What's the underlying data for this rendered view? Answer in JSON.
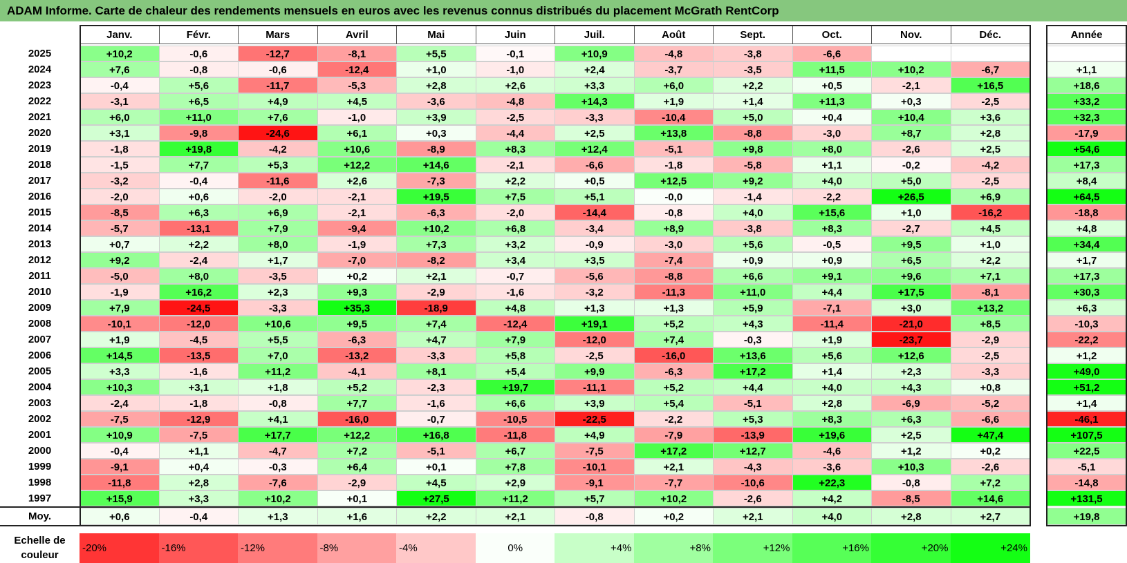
{
  "title": "ADAM Informe. Carte de chaleur des rendements mensuels en euros avec les revenus connus distribués du placement McGrath RentCorp",
  "chart_data": {
    "type": "heatmap",
    "months": [
      "Janv.",
      "Févr.",
      "Mars",
      "Avril",
      "Mai",
      "Juin",
      "Juil.",
      "Août",
      "Sept.",
      "Oct.",
      "Nov.",
      "Déc."
    ],
    "year_header": "Année",
    "rows": [
      {
        "year": "2025",
        "values": [
          "+10,2",
          "-0,6",
          "-12,7",
          "-8,1",
          "+5,5",
          "-0,1",
          "+10,9",
          "-4,8",
          "-3,8",
          "-6,6",
          "",
          ""
        ],
        "annual": ""
      },
      {
        "year": "2024",
        "values": [
          "+7,6",
          "-0,8",
          "-0,6",
          "-12,4",
          "+1,0",
          "-1,0",
          "+2,4",
          "-3,7",
          "-3,5",
          "+11,5",
          "+10,2",
          "-6,7"
        ],
        "annual": "+1,1"
      },
      {
        "year": "2023",
        "values": [
          "-0,4",
          "+5,6",
          "-11,7",
          "-5,3",
          "+2,8",
          "+2,6",
          "+3,3",
          "+6,0",
          "+2,2",
          "+0,5",
          "-2,1",
          "+16,5"
        ],
        "annual": "+18,6"
      },
      {
        "year": "2022",
        "values": [
          "-3,1",
          "+6,5",
          "+4,9",
          "+4,5",
          "-3,6",
          "-4,8",
          "+14,3",
          "+1,9",
          "+1,4",
          "+11,3",
          "+0,3",
          "-2,5"
        ],
        "annual": "+33,2"
      },
      {
        "year": "2021",
        "values": [
          "+6,0",
          "+11,0",
          "+7,6",
          "-1,0",
          "+3,9",
          "-2,5",
          "-3,3",
          "-10,4",
          "+5,0",
          "+0,4",
          "+10,4",
          "+3,6"
        ],
        "annual": "+32,3"
      },
      {
        "year": "2020",
        "values": [
          "+3,1",
          "-9,8",
          "-24,6",
          "+6,1",
          "+0,3",
          "-4,4",
          "+2,5",
          "+13,8",
          "-8,8",
          "-3,0",
          "+8,7",
          "+2,8"
        ],
        "annual": "-17,9"
      },
      {
        "year": "2019",
        "values": [
          "-1,8",
          "+19,8",
          "-4,2",
          "+10,6",
          "-8,9",
          "+8,3",
          "+12,4",
          "-5,1",
          "+9,8",
          "+8,0",
          "-2,6",
          "+2,5"
        ],
        "annual": "+54,6"
      },
      {
        "year": "2018",
        "values": [
          "-1,5",
          "+7,7",
          "+5,3",
          "+12,2",
          "+14,6",
          "-2,1",
          "-6,6",
          "-1,8",
          "-5,8",
          "+1,1",
          "-0,2",
          "-4,2"
        ],
        "annual": "+17,3"
      },
      {
        "year": "2017",
        "values": [
          "-3,2",
          "-0,4",
          "-11,6",
          "+2,6",
          "-7,3",
          "+2,2",
          "+0,5",
          "+12,5",
          "+9,2",
          "+4,0",
          "+5,0",
          "-2,5"
        ],
        "annual": "+8,4"
      },
      {
        "year": "2016",
        "values": [
          "-2,0",
          "+0,6",
          "-2,0",
          "-2,1",
          "+19,5",
          "+7,5",
          "+5,1",
          "-0,0",
          "-1,4",
          "-2,2",
          "+26,5",
          "+6,9"
        ],
        "annual": "+64,5"
      },
      {
        "year": "2015",
        "values": [
          "-8,5",
          "+6,3",
          "+6,9",
          "-2,1",
          "-6,3",
          "-2,0",
          "-14,4",
          "-0,8",
          "+4,0",
          "+15,6",
          "+1,0",
          "-16,2"
        ],
        "annual": "-18,8"
      },
      {
        "year": "2014",
        "values": [
          "-5,7",
          "-13,1",
          "+7,9",
          "-9,4",
          "+10,2",
          "+6,8",
          "-3,4",
          "+8,9",
          "-3,8",
          "+8,3",
          "-2,7",
          "+4,5"
        ],
        "annual": "+4,8"
      },
      {
        "year": "2013",
        "values": [
          "+0,7",
          "+2,2",
          "+8,0",
          "-1,9",
          "+7,3",
          "+3,2",
          "-0,9",
          "-3,0",
          "+5,6",
          "-0,5",
          "+9,5",
          "+1,0"
        ],
        "annual": "+34,4"
      },
      {
        "year": "2012",
        "values": [
          "+9,2",
          "-2,4",
          "+1,7",
          "-7,0",
          "-8,2",
          "+3,4",
          "+3,5",
          "-7,4",
          "+0,9",
          "+0,9",
          "+6,5",
          "+2,2"
        ],
        "annual": "+1,7"
      },
      {
        "year": "2011",
        "values": [
          "-5,0",
          "+8,0",
          "-3,5",
          "+0,2",
          "+2,1",
          "-0,7",
          "-5,6",
          "-8,8",
          "+6,6",
          "+9,1",
          "+9,6",
          "+7,1"
        ],
        "annual": "+17,3"
      },
      {
        "year": "2010",
        "values": [
          "-1,9",
          "+16,2",
          "+2,3",
          "+9,3",
          "-2,9",
          "-1,6",
          "-3,2",
          "-11,3",
          "+11,0",
          "+4,4",
          "+17,5",
          "-8,1"
        ],
        "annual": "+30,3"
      },
      {
        "year": "2009",
        "values": [
          "+7,9",
          "-24,5",
          "-3,3",
          "+35,3",
          "-18,9",
          "+4,8",
          "+1,3",
          "+1,3",
          "+5,9",
          "-7,1",
          "+3,0",
          "+13,2"
        ],
        "annual": "+6,3"
      },
      {
        "year": "2008",
        "values": [
          "-10,1",
          "-12,0",
          "+10,6",
          "+9,5",
          "+7,4",
          "-12,4",
          "+19,1",
          "+5,2",
          "+4,3",
          "-11,4",
          "-21,0",
          "+8,5"
        ],
        "annual": "-10,3"
      },
      {
        "year": "2007",
        "values": [
          "+1,9",
          "-4,5",
          "+5,5",
          "-6,3",
          "+4,7",
          "+7,9",
          "-12,0",
          "+7,4",
          "-0,3",
          "+1,9",
          "-23,7",
          "-2,9"
        ],
        "annual": "-22,2"
      },
      {
        "year": "2006",
        "values": [
          "+14,5",
          "-13,5",
          "+7,0",
          "-13,2",
          "-3,3",
          "+5,8",
          "-2,5",
          "-16,0",
          "+13,6",
          "+5,6",
          "+12,6",
          "-2,5"
        ],
        "annual": "+1,2"
      },
      {
        "year": "2005",
        "values": [
          "+3,3",
          "-1,6",
          "+11,2",
          "-4,1",
          "+8,1",
          "+5,4",
          "+9,9",
          "-6,3",
          "+17,2",
          "+1,4",
          "+2,3",
          "-3,3"
        ],
        "annual": "+49,0"
      },
      {
        "year": "2004",
        "values": [
          "+10,3",
          "+3,1",
          "+1,8",
          "+5,2",
          "-2,3",
          "+19,7",
          "-11,1",
          "+5,2",
          "+4,4",
          "+4,0",
          "+4,3",
          "+0,8"
        ],
        "annual": "+51,2"
      },
      {
        "year": "2003",
        "values": [
          "-2,4",
          "-1,8",
          "-0,8",
          "+7,7",
          "-1,6",
          "+6,6",
          "+3,9",
          "+5,4",
          "-5,1",
          "+2,8",
          "-6,9",
          "-5,2"
        ],
        "annual": "+1,4"
      },
      {
        "year": "2002",
        "values": [
          "-7,5",
          "-12,9",
          "+4,1",
          "-16,0",
          "-0,7",
          "-10,5",
          "-22,5",
          "-2,2",
          "+5,3",
          "+8,3",
          "+6,3",
          "-6,6"
        ],
        "annual": "-46,1"
      },
      {
        "year": "2001",
        "values": [
          "+10,9",
          "-7,5",
          "+17,7",
          "+12,2",
          "+16,8",
          "-11,8",
          "+4,9",
          "-7,9",
          "-13,9",
          "+19,6",
          "+2,5",
          "+47,4"
        ],
        "annual": "+107,5"
      },
      {
        "year": "2000",
        "values": [
          "-0,4",
          "+1,1",
          "-4,7",
          "+7,2",
          "-5,1",
          "+6,7",
          "-7,5",
          "+17,2",
          "+12,7",
          "-4,6",
          "+1,2",
          "+0,2"
        ],
        "annual": "+22,5"
      },
      {
        "year": "1999",
        "values": [
          "-9,1",
          "+0,4",
          "-0,3",
          "+6,4",
          "+0,1",
          "+7,8",
          "-10,1",
          "+2,1",
          "-4,3",
          "-3,6",
          "+10,3",
          "-2,6"
        ],
        "annual": "-5,1"
      },
      {
        "year": "1998",
        "values": [
          "-11,8",
          "+2,8",
          "-7,6",
          "-2,9",
          "+4,5",
          "+2,9",
          "-9,1",
          "-7,7",
          "-10,6",
          "+22,3",
          "-0,8",
          "+7,2"
        ],
        "annual": "-14,8"
      },
      {
        "year": "1997",
        "values": [
          "+15,9",
          "+3,3",
          "+10,2",
          "+0,1",
          "+27,5",
          "+11,2",
          "+5,7",
          "+10,2",
          "-2,6",
          "+4,2",
          "-8,5",
          "+14,6"
        ],
        "annual": "+131,5"
      }
    ],
    "average": {
      "label": "Moy.",
      "values": [
        "+0,6",
        "-0,4",
        "+1,3",
        "+1,6",
        "+2,2",
        "+2,1",
        "-0,8",
        "+0,2",
        "+2,1",
        "+4,0",
        "+2,8",
        "+2,7"
      ],
      "annual": "+19,8"
    },
    "scale": {
      "label": "Echelle de couleur",
      "items": [
        "-20%",
        "-16%",
        "-12%",
        "-8%",
        "-4%",
        "0%",
        "+4%",
        "+8%",
        "+12%",
        "+16%",
        "+20%",
        "+24%"
      ],
      "values": [
        -20,
        -16,
        -12,
        -8,
        -4,
        0,
        4,
        8,
        12,
        16,
        20,
        24
      ]
    },
    "colors": {
      "negative": "#ff0000",
      "positive": "#00ff00",
      "neutral": "#ffffff",
      "title_bg": "#86c77e"
    }
  }
}
